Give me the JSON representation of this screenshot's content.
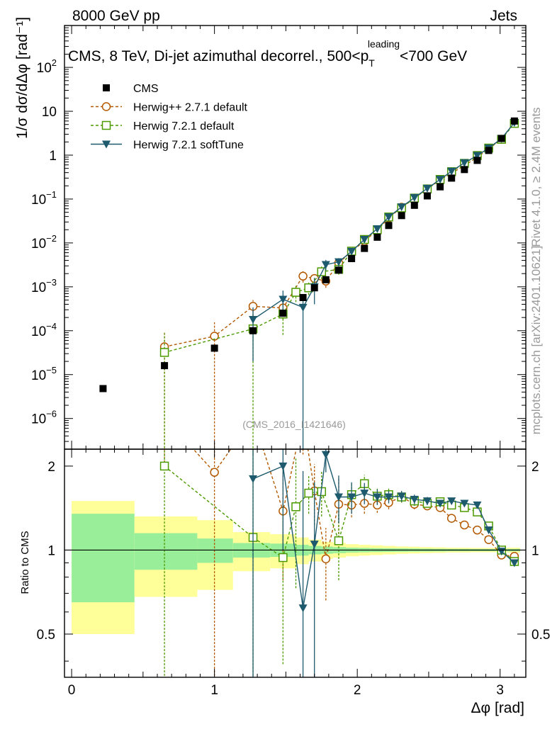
{
  "header": {
    "left": "8000 GeV pp",
    "right": "Jets"
  },
  "side_texts": {
    "rivet": "Rivet 4.1.0, ≥ 2.4M events",
    "mcplots": "mcplots.cern.ch [arXiv:2401.10621]"
  },
  "colors": {
    "cms": "#000000",
    "herwigpp": "#b35900",
    "herwig72": "#4c9a00",
    "softtune": "#1d5a6e",
    "band_yellow": "#ffff99",
    "band_green": "#99ee99"
  },
  "chart_data": {
    "type": "line",
    "title": "CMS, 8 TeV, Di-jet azimuthal decorrel., 500<p_T^leading<700 GeV",
    "title_parts": {
      "main": "CMS, 8 TeV, Di-jet azimuthal decorrel., 500<p",
      "sub": "T",
      "sup": "leading",
      "tail": "<700 GeV"
    },
    "analysis_label": "(CMS_2016_I1421646)",
    "xlabel": "Δφ [rad]",
    "ylabel": "1/σ dσ/dΔφ [rad⁻¹]",
    "ratio_ylabel": "Ratio to CMS",
    "xlim": [
      -0.05,
      3.18
    ],
    "ylim_log": [
      2e-07,
      900
    ],
    "ratio_ylim": [
      0.35,
      2.3
    ],
    "x_ticks": [
      0,
      1,
      2,
      3
    ],
    "y_ticks": [
      {
        "value": 1e-06,
        "base": "10",
        "exp": "−6"
      },
      {
        "value": 1e-05,
        "base": "10",
        "exp": "−5"
      },
      {
        "value": 0.0001,
        "base": "10",
        "exp": "−4"
      },
      {
        "value": 0.001,
        "base": "10",
        "exp": "−3"
      },
      {
        "value": 0.01,
        "base": "10",
        "exp": "−2"
      },
      {
        "value": 0.1,
        "base": "10",
        "exp": "−1"
      },
      {
        "value": 1,
        "base": "1",
        "exp": ""
      },
      {
        "value": 10,
        "base": "10",
        "exp": ""
      },
      {
        "value": 100,
        "base": "10",
        "exp": "2"
      }
    ],
    "ratio_ticks": [
      {
        "value": 0.5,
        "label": "0.5"
      },
      {
        "value": 1,
        "label": "1"
      },
      {
        "value": 2,
        "label": "2"
      }
    ],
    "legend": [
      {
        "key": "cms",
        "label": "CMS"
      },
      {
        "key": "herwigpp",
        "label": "Herwig++ 2.7.1 default"
      },
      {
        "key": "herwig72",
        "label": "Herwig 7.2.1 default"
      },
      {
        "key": "softtune",
        "label": "Herwig 7.2.1 softTune"
      }
    ],
    "data": {
      "name": "CMS",
      "x": [
        0.22,
        0.65,
        1.0,
        1.27,
        1.48,
        1.62,
        1.7,
        1.78,
        1.87,
        1.96,
        2.05,
        2.14,
        2.22,
        2.31,
        2.4,
        2.49,
        2.58,
        2.66,
        2.75,
        2.84,
        2.92,
        3.01,
        3.1
      ],
      "y": [
        4.8e-06,
        1.6e-05,
        4e-05,
        0.0001,
        0.00025,
        0.00057,
        0.00095,
        0.00145,
        0.0024,
        0.0044,
        0.0075,
        0.0135,
        0.025,
        0.042,
        0.072,
        0.118,
        0.19,
        0.3,
        0.47,
        0.76,
        1.28,
        2.4,
        6.0
      ],
      "xerr": [
        0.22,
        0.22,
        0.13,
        0.13,
        0.09,
        0.045,
        0.045,
        0.045,
        0.045,
        0.045,
        0.045,
        0.045,
        0.045,
        0.045,
        0.045,
        0.045,
        0.045,
        0.045,
        0.045,
        0.045,
        0.045,
        0.045,
        0.045
      ]
    },
    "bands": {
      "x_edges": [
        0.0,
        0.44,
        0.88,
        1.13,
        1.39,
        1.57,
        1.66,
        1.75,
        1.83,
        1.92,
        2.01,
        2.09,
        2.18,
        2.27,
        2.36,
        2.44,
        2.53,
        2.62,
        2.71,
        2.79,
        2.88,
        2.97,
        3.05,
        3.14
      ],
      "stat_half": [
        0.35,
        0.15,
        0.1,
        0.06,
        0.055,
        0.045,
        0.035,
        0.03,
        0.025,
        0.02,
        0.018,
        0.016,
        0.015,
        0.014,
        0.013,
        0.012,
        0.011,
        0.01,
        0.01,
        0.009,
        0.009,
        0.008,
        0.01
      ],
      "tot_half": [
        0.5,
        0.32,
        0.28,
        0.16,
        0.14,
        0.11,
        0.09,
        0.07,
        0.06,
        0.05,
        0.045,
        0.04,
        0.035,
        0.03,
        0.028,
        0.025,
        0.023,
        0.02,
        0.02,
        0.018,
        0.018,
        0.016,
        0.02
      ]
    },
    "series": [
      {
        "key": "herwigpp",
        "name": "Herwig++ 2.7.1 default",
        "marker": "circle",
        "x": [
          0.65,
          1.0,
          1.27,
          1.48,
          1.62,
          1.7,
          1.78,
          1.87,
          1.96,
          2.05,
          2.14,
          2.22,
          2.31,
          2.4,
          2.49,
          2.58,
          2.66,
          2.75,
          2.84,
          2.92,
          3.01,
          3.1
        ],
        "y": [
          4.3e-05,
          7.5e-05,
          0.00036,
          0.00033,
          0.00175,
          0.00155,
          0.00135,
          0.0035,
          0.0064,
          0.011,
          0.0195,
          0.037,
          0.065,
          0.105,
          0.17,
          0.27,
          0.39,
          0.58,
          0.9,
          1.4,
          2.3,
          5.7
        ],
        "yerr": [
          5e-05,
          8e-05,
          0.00014,
          0.00015,
          0.0005,
          0.0004,
          0.0004,
          0.0008,
          0.0007,
          0.001,
          0.0012,
          0.002,
          0.003,
          0.004,
          0.005,
          0.007,
          0.009,
          0.012,
          0.018,
          0.025,
          0.04,
          0.08
        ],
        "ratio": [
          3.3,
          1.9,
          3.6,
          1.38,
          3.1,
          1.63,
          0.93,
          1.46,
          1.45,
          1.47,
          1.45,
          1.48,
          1.55,
          1.46,
          1.44,
          1.42,
          1.3,
          1.23,
          1.18,
          1.09,
          0.96,
          0.95
        ],
        "rerr": [
          1.3,
          1.9,
          1.4,
          0.6,
          0.9,
          0.4,
          0.27,
          0.35,
          0.14,
          0.12,
          0.09,
          0.08,
          0.07,
          0.06,
          0.05,
          0.04,
          0.03,
          0.03,
          0.025,
          0.02,
          0.02,
          0.02
        ]
      },
      {
        "key": "herwig72",
        "name": "Herwig 7.2.1 default",
        "marker": "square",
        "x": [
          0.65,
          1.27,
          1.48,
          1.57,
          1.66,
          1.75,
          1.87,
          1.96,
          2.05,
          2.14,
          2.22,
          2.31,
          2.4,
          2.49,
          2.58,
          2.66,
          2.75,
          2.84,
          2.92,
          3.01,
          3.1
        ],
        "y": [
          3.2e-05,
          0.00011,
          0.00024,
          0.00075,
          0.00095,
          0.0022,
          0.0025,
          0.0065,
          0.012,
          0.02,
          0.039,
          0.063,
          0.105,
          0.17,
          0.28,
          0.42,
          0.65,
          0.98,
          1.45,
          2.3,
          5.3
        ],
        "yerr": [
          5.5e-05,
          0.00012,
          0.00016,
          0.0003,
          0.0003,
          0.0007,
          0.0006,
          0.001,
          0.0012,
          0.0015,
          0.002,
          0.003,
          0.004,
          0.005,
          0.007,
          0.009,
          0.012,
          0.018,
          0.025,
          0.04,
          0.08
        ],
        "ratio": [
          2.0,
          1.11,
          0.94,
          1.43,
          1.6,
          1.62,
          1.08,
          1.58,
          1.73,
          1.56,
          1.58,
          1.55,
          1.5,
          1.47,
          1.49,
          1.45,
          1.42,
          1.37,
          1.22,
          1.0,
          0.91
        ],
        "rerr": [
          3.5,
          1.2,
          0.55,
          0.7,
          0.25,
          0.3,
          0.3,
          0.15,
          0.13,
          0.1,
          0.08,
          0.07,
          0.06,
          0.05,
          0.04,
          0.03,
          0.03,
          0.025,
          0.02,
          0.02,
          0.02
        ]
      },
      {
        "key": "softtune",
        "name": "Herwig 7.2.1 softTune",
        "marker": "triangle",
        "x": [
          1.27,
          1.48,
          1.62,
          1.7,
          1.78,
          1.87,
          1.96,
          2.05,
          2.14,
          2.22,
          2.31,
          2.4,
          2.49,
          2.58,
          2.66,
          2.75,
          2.84,
          2.92,
          3.01,
          3.1
        ],
        "y": [
          0.00018,
          0.00052,
          0.00034,
          0.001,
          0.0032,
          0.0037,
          0.0064,
          0.012,
          0.021,
          0.039,
          0.066,
          0.108,
          0.175,
          0.28,
          0.43,
          0.67,
          0.98,
          1.45,
          2.4,
          5.5
        ],
        "yerr": [
          0.00016,
          0.0003,
          0.00034,
          0.0006,
          0.0009,
          0.0008,
          0.001,
          0.0012,
          0.0015,
          0.002,
          0.003,
          0.004,
          0.005,
          0.007,
          0.009,
          0.012,
          0.018,
          0.025,
          0.04,
          0.08
        ],
        "ratio": [
          1.8,
          2.0,
          0.62,
          1.05,
          2.2,
          1.55,
          1.55,
          1.6,
          1.55,
          1.55,
          1.56,
          1.52,
          1.5,
          1.47,
          1.5,
          1.47,
          1.45,
          1.18,
          0.99,
          0.9
        ],
        "rerr": [
          1.5,
          1.0,
          1.3,
          0.7,
          0.3,
          0.3,
          0.2,
          0.14,
          0.1,
          0.08,
          0.07,
          0.06,
          0.05,
          0.04,
          0.03,
          0.03,
          0.025,
          0.02,
          0.02,
          0.02
        ]
      }
    ]
  }
}
